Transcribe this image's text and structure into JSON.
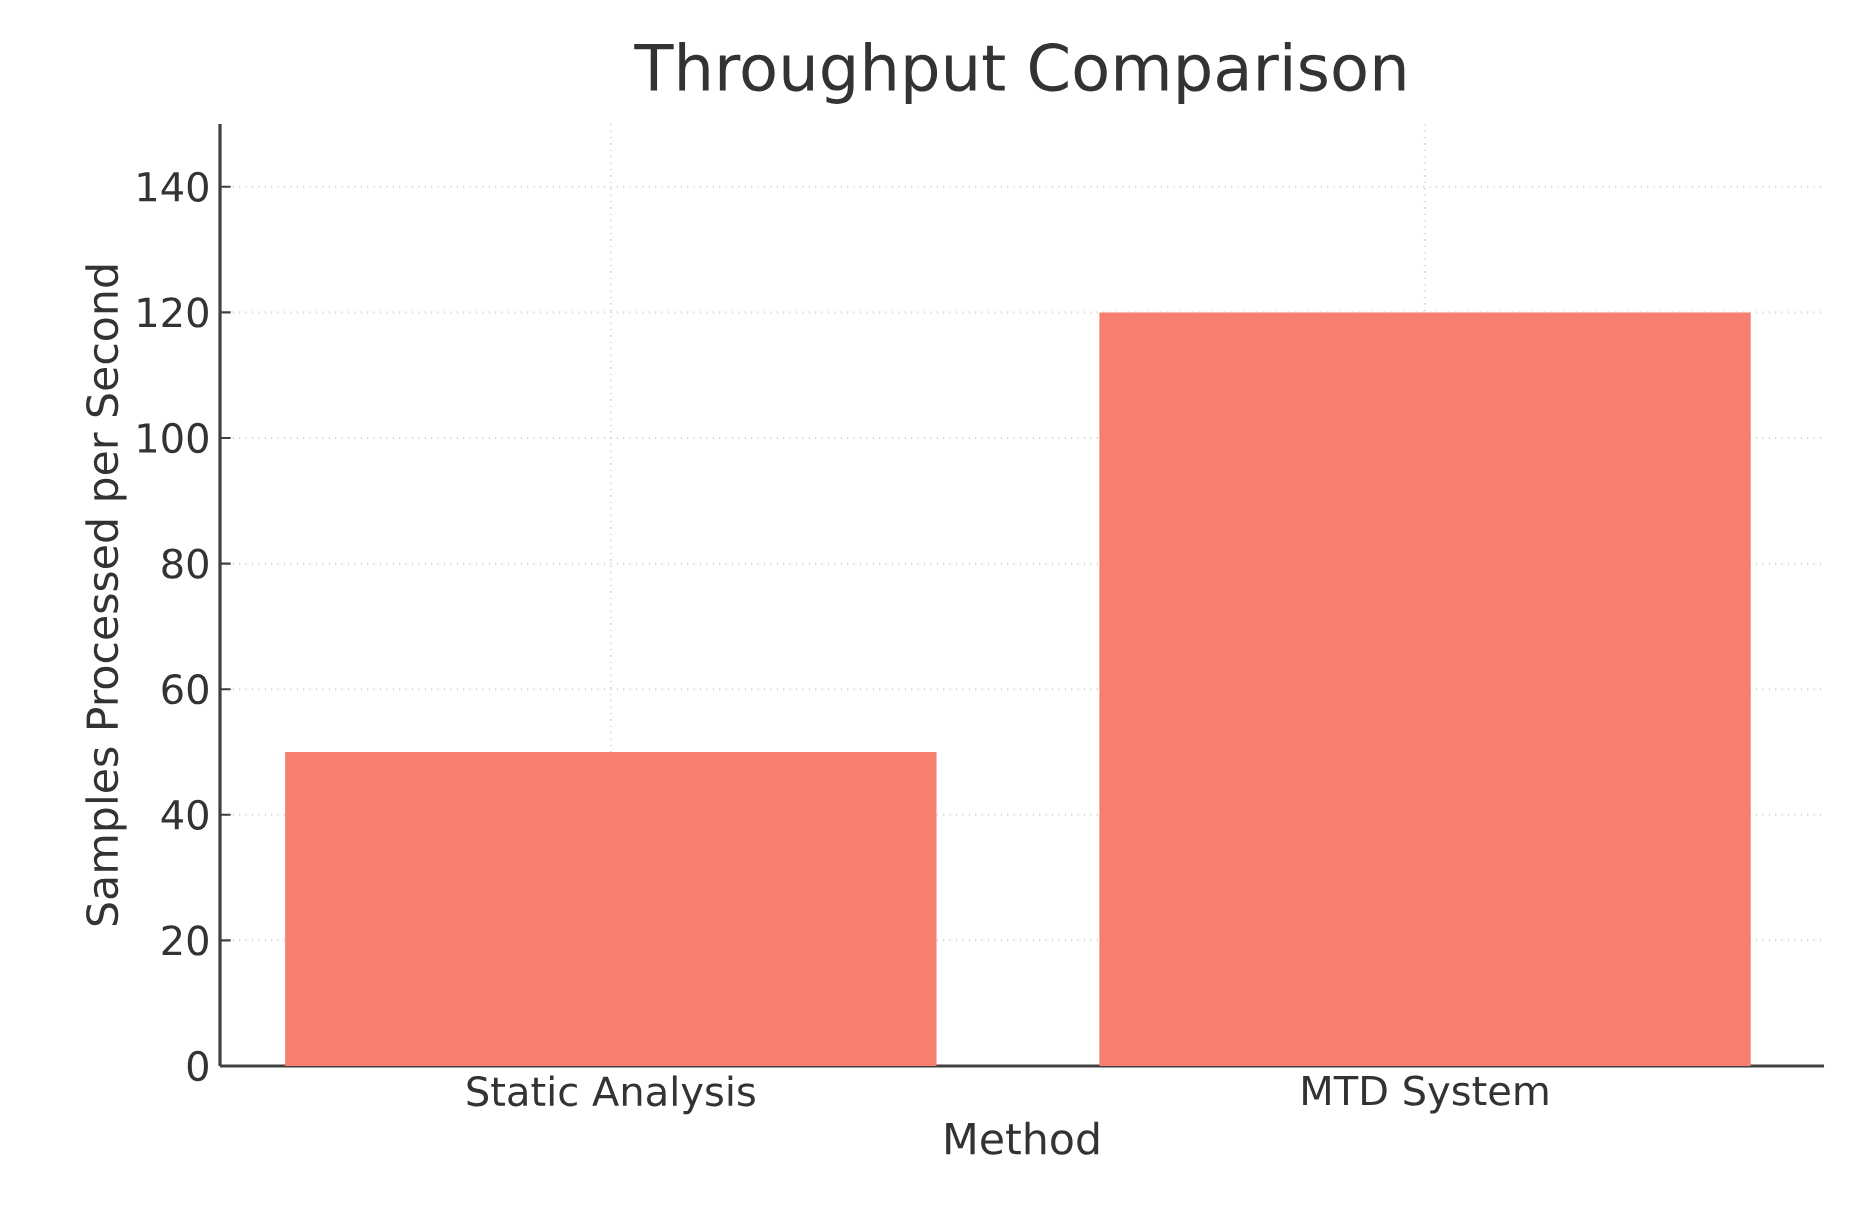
{
  "chart_data": {
    "type": "bar",
    "title": "Throughput Comparison",
    "xlabel": "Method",
    "ylabel": "Samples Processed per Second",
    "categories": [
      "Static Analysis",
      "MTD System"
    ],
    "values": [
      50,
      120
    ],
    "color": "#f67f70",
    "ylim": [
      0,
      150
    ],
    "yticks": [
      0,
      20,
      40,
      60,
      80,
      100,
      120,
      140
    ],
    "grid": true
  }
}
